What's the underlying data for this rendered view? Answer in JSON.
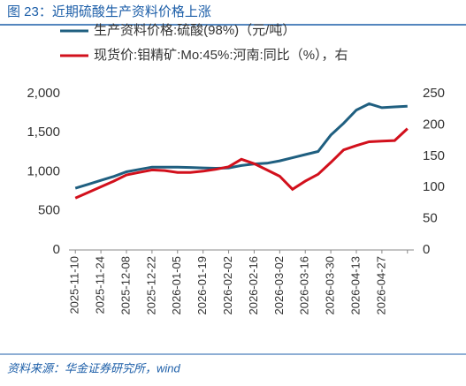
{
  "header": {
    "title": "图 23：近期硫酸生产资料价格上涨"
  },
  "chart_data": {
    "type": "line",
    "categories": [
      "2025-11-10",
      null,
      "2025-11-24",
      null,
      "2025-12-08",
      null,
      "2025-12-22",
      null,
      "2026-01-05",
      null,
      "2026-01-19",
      null,
      "2026-02-02",
      null,
      "2026-02-16",
      null,
      "2026-03-02",
      null,
      "2026-03-16",
      null,
      "2026-03-30",
      null,
      "2026-04-13",
      null,
      "2026-04-27",
      null,
      null
    ],
    "series": [
      {
        "name": "生产资料价格:硫酸(98%)（元/吨）",
        "color": "#1f5f80",
        "values": [
          790,
          840,
          890,
          940,
          1000,
          1030,
          1060,
          1060,
          1060,
          1055,
          1050,
          1045,
          1050,
          1080,
          1100,
          1110,
          1140,
          1180,
          1220,
          1260,
          1470,
          1620,
          1790,
          1870,
          1820,
          1830,
          1840
        ]
      },
      {
        "name": "现货价:钼精矿:Mo:45%:河南:同比（%），右",
        "color": "#d2101c",
        "axis": "y2",
        "values": [
          83,
          92,
          101,
          110,
          120,
          124,
          128,
          127,
          124,
          124,
          126,
          129,
          133,
          145,
          138,
          128,
          118,
          97,
          110,
          121,
          140,
          160,
          167,
          173,
          174,
          175,
          194
        ]
      }
    ],
    "ylim": [
      0,
      2000
    ],
    "yticks": [
      0,
      500,
      {
        "value": 1000,
        "label": "1,000"
      },
      {
        "value": 1500,
        "label": "1,500"
      },
      {
        "value": 2000,
        "label": "2,000"
      }
    ],
    "y2lim": [
      0,
      250
    ],
    "y2ticks": [
      0,
      50,
      100,
      150,
      200,
      250
    ],
    "legend": "top-left"
  },
  "footer": {
    "source": "资料来源：华金证券研究所，wind"
  }
}
